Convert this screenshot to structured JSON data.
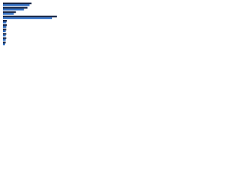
{
  "chart_data": {
    "type": "hbar",
    "categories": [
      null,
      null,
      null,
      null,
      null,
      null,
      null,
      null,
      null,
      null
    ],
    "series": [
      {
        "color": "#1b2a4a",
        "values": [
          42,
          36,
          19,
          79,
          6,
          6,
          5,
          5,
          5,
          4
        ]
      },
      {
        "color": "#2f6fc6",
        "values": [
          39,
          31,
          16,
          72,
          5,
          5,
          4,
          4,
          4,
          3
        ]
      }
    ],
    "xlim": [
      0,
      100
    ]
  }
}
